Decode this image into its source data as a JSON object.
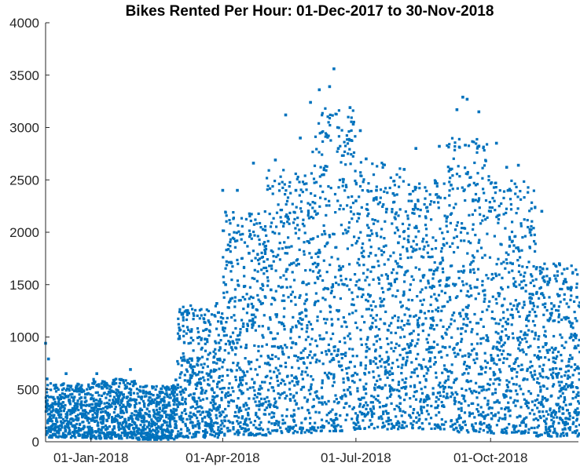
{
  "chart_data": {
    "type": "scatter",
    "title": "Bikes Rented Per Hour: 01-Dec-2017 to 30-Nov-2018",
    "xlabel": "",
    "ylabel": "",
    "xlim": [
      "2017-12-01",
      "2018-11-30"
    ],
    "ylim": [
      0,
      4000
    ],
    "x_ticks": [
      "2018-01-01",
      "2018-04-01",
      "2018-07-01",
      "2018-10-01"
    ],
    "x_tick_labels": [
      "01-Jan-2018",
      "01-Apr-2018",
      "01-Jul-2018",
      "01-Oct-2018"
    ],
    "y_ticks": [
      0,
      500,
      1000,
      1500,
      2000,
      2500,
      3000,
      3500,
      4000
    ],
    "y_tick_labels": [
      "0",
      "500",
      "1000",
      "1500",
      "2000",
      "2500",
      "3000",
      "3500",
      "4000"
    ],
    "grid": false,
    "legend": "none",
    "marker_color": "#0072BD",
    "series": [
      {
        "points": [
          [
            "2017-12-01",
            940
          ],
          [
            "2017-12-02",
            600
          ],
          [
            "2017-12-03",
            790
          ],
          [
            "2017-12-05",
            250
          ],
          [
            "2017-12-08",
            520
          ],
          [
            "2017-12-12",
            180
          ],
          [
            "2017-12-15",
            650
          ],
          [
            "2017-12-20",
            300
          ],
          [
            "2017-12-25",
            120
          ],
          [
            "2017-12-28",
            420
          ],
          [
            "2018-01-02",
            90
          ],
          [
            "2018-01-05",
            650
          ],
          [
            "2018-01-08",
            380
          ],
          [
            "2018-01-12",
            200
          ],
          [
            "2018-01-16",
            560
          ],
          [
            "2018-01-20",
            140
          ],
          [
            "2018-01-25",
            330
          ],
          [
            "2018-01-28",
            690
          ],
          [
            "2018-02-02",
            250
          ],
          [
            "2018-02-06",
            80
          ],
          [
            "2018-02-10",
            460
          ],
          [
            "2018-02-15",
            120
          ],
          [
            "2018-02-20",
            350
          ],
          [
            "2018-02-24",
            60
          ],
          [
            "2018-02-28",
            590
          ],
          [
            "2018-03-04",
            210
          ],
          [
            "2018-03-08",
            760
          ],
          [
            "2018-03-12",
            420
          ],
          [
            "2018-03-16",
            130
          ],
          [
            "2018-03-20",
            980
          ],
          [
            "2018-03-24",
            620
          ],
          [
            "2018-03-28",
            1320
          ],
          [
            "2018-04-01",
            2400
          ],
          [
            "2018-04-03",
            1500
          ],
          [
            "2018-04-07",
            900
          ],
          [
            "2018-04-11",
            2400
          ],
          [
            "2018-04-15",
            1100
          ],
          [
            "2018-04-19",
            1800
          ],
          [
            "2018-04-22",
            2660
          ],
          [
            "2018-04-26",
            500
          ],
          [
            "2018-04-30",
            2020
          ],
          [
            "2018-05-04",
            1450
          ],
          [
            "2018-05-07",
            2690
          ],
          [
            "2018-05-11",
            2100
          ],
          [
            "2018-05-14",
            3120
          ],
          [
            "2018-05-18",
            1700
          ],
          [
            "2018-05-21",
            2400
          ],
          [
            "2018-05-24",
            2900
          ],
          [
            "2018-05-28",
            1200
          ],
          [
            "2018-05-31",
            3240
          ],
          [
            "2018-06-03",
            2200
          ],
          [
            "2018-06-06",
            3360
          ],
          [
            "2018-06-09",
            2550
          ],
          [
            "2018-06-13",
            3390
          ],
          [
            "2018-06-16",
            3560
          ],
          [
            "2018-06-19",
            2800
          ],
          [
            "2018-06-23",
            1500
          ],
          [
            "2018-06-27",
            3190
          ],
          [
            "2018-07-01",
            2300
          ],
          [
            "2018-07-04",
            2970
          ],
          [
            "2018-07-08",
            2700
          ],
          [
            "2018-07-11",
            1800
          ],
          [
            "2018-07-15",
            2400
          ],
          [
            "2018-07-18",
            900
          ],
          [
            "2018-07-22",
            2220
          ],
          [
            "2018-07-26",
            650
          ],
          [
            "2018-07-30",
            1900
          ],
          [
            "2018-08-03",
            2600
          ],
          [
            "2018-08-07",
            1200
          ],
          [
            "2018-08-11",
            2800
          ],
          [
            "2018-08-15",
            700
          ],
          [
            "2018-08-19",
            2200
          ],
          [
            "2018-08-23",
            1600
          ],
          [
            "2018-08-27",
            2820
          ],
          [
            "2018-08-31",
            900
          ],
          [
            "2018-09-04",
            2450
          ],
          [
            "2018-09-08",
            3170
          ],
          [
            "2018-09-12",
            3290
          ],
          [
            "2018-09-15",
            3270
          ],
          [
            "2018-09-19",
            2300
          ],
          [
            "2018-09-23",
            3150
          ],
          [
            "2018-09-27",
            1400
          ],
          [
            "2018-10-01",
            2200
          ],
          [
            "2018-10-05",
            2850
          ],
          [
            "2018-10-08",
            1000
          ],
          [
            "2018-10-12",
            2620
          ],
          [
            "2018-10-16",
            1700
          ],
          [
            "2018-10-20",
            2640
          ],
          [
            "2018-10-24",
            600
          ],
          [
            "2018-10-28",
            2000
          ],
          [
            "2018-11-01",
            1200
          ],
          [
            "2018-11-05",
            2200
          ],
          [
            "2018-11-09",
            1500
          ],
          [
            "2018-11-13",
            800
          ],
          [
            "2018-11-17",
            1700
          ],
          [
            "2018-11-21",
            1550
          ],
          [
            "2018-11-25",
            1000
          ],
          [
            "2018-11-29",
            1380
          ],
          [
            "2018-11-30",
            700
          ]
        ],
        "daily_band": [
          [
            "2017-12",
            40,
            560
          ],
          [
            "2018-01",
            30,
            600
          ],
          [
            "2018-02",
            20,
            540
          ],
          [
            "2018-03",
            40,
            1300
          ],
          [
            "2018-04",
            60,
            2200
          ],
          [
            "2018-05",
            80,
            2600
          ],
          [
            "2018-06",
            100,
            3200
          ],
          [
            "2018-07",
            120,
            2700
          ],
          [
            "2018-08",
            120,
            2500
          ],
          [
            "2018-09",
            90,
            2900
          ],
          [
            "2018-10",
            80,
            2500
          ],
          [
            "2018-11",
            50,
            1700
          ]
        ]
      }
    ]
  }
}
